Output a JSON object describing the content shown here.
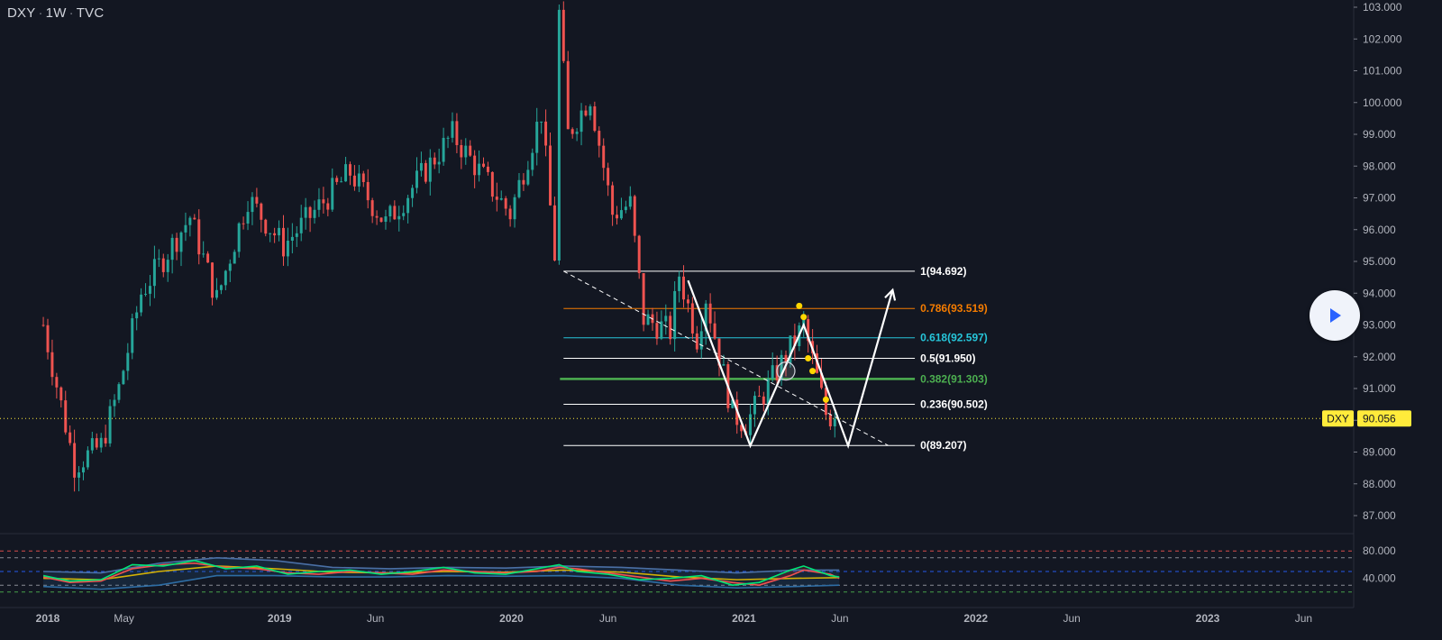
{
  "header": {
    "symbol": "DXY",
    "interval": "1W",
    "exchange": "TVC"
  },
  "colors": {
    "background": "#131722",
    "up": "#26a69a",
    "down": "#ef5350",
    "fib_line": "#ffffff",
    "fib_786": "#f57c00",
    "fib_618": "#26c6da",
    "fib_382": "#4caf50",
    "price_tag": "#ffeb3b",
    "marker": "#ffd600"
  },
  "icons": {
    "play": "play-icon"
  },
  "chart_data": [
    {
      "type": "candlestick",
      "title": "DXY · 1W · TVC",
      "ylim": [
        86.5,
        103.2
      ],
      "y_ticks": [
        "103.000",
        "102.000",
        "101.000",
        "100.000",
        "99.000",
        "98.000",
        "97.000",
        "96.000",
        "95.000",
        "94.000",
        "93.000",
        "92.000",
        "91.000",
        "90.000",
        "89.000",
        "88.000",
        "87.000"
      ],
      "x_ticks": [
        "2018",
        "May",
        "2019",
        "Jun",
        "2020",
        "Jun",
        "2021",
        "Jun",
        "2022",
        "Jun",
        "2023",
        "Jun"
      ],
      "last_price": {
        "symbol": "DXY",
        "value": "90.056"
      },
      "anchors": [
        {
          "date": "2017-12-25",
          "value": 93.0
        },
        {
          "date": "2018-02-12",
          "value": 88.6
        },
        {
          "date": "2018-03-26",
          "value": 89.2
        },
        {
          "date": "2018-04-23",
          "value": 91.0
        },
        {
          "date": "2018-05-28",
          "value": 94.0
        },
        {
          "date": "2018-08-13",
          "value": 96.4
        },
        {
          "date": "2018-09-24",
          "value": 93.8
        },
        {
          "date": "2018-11-12",
          "value": 97.0
        },
        {
          "date": "2019-01-07",
          "value": 95.5
        },
        {
          "date": "2019-04-22",
          "value": 97.8
        },
        {
          "date": "2019-06-17",
          "value": 96.2
        },
        {
          "date": "2019-09-30",
          "value": 99.0
        },
        {
          "date": "2019-12-30",
          "value": 96.5
        },
        {
          "date": "2020-02-17",
          "value": 99.7
        },
        {
          "date": "2020-03-09",
          "value": 95.2
        },
        {
          "date": "2020-03-16",
          "value": 102.8
        },
        {
          "date": "2020-03-30",
          "value": 99.0
        },
        {
          "date": "2020-05-04",
          "value": 100.2
        },
        {
          "date": "2020-06-08",
          "value": 96.5
        },
        {
          "date": "2020-07-06",
          "value": 96.8
        },
        {
          "date": "2020-07-27",
          "value": 93.2
        },
        {
          "date": "2020-09-07",
          "value": 92.8
        },
        {
          "date": "2020-09-21",
          "value": 94.6
        },
        {
          "date": "2020-10-19",
          "value": 92.6
        },
        {
          "date": "2020-11-02",
          "value": 93.9
        },
        {
          "date": "2020-12-14",
          "value": 90.2
        },
        {
          "date": "2021-01-04",
          "value": 89.9
        },
        {
          "date": "2021-01-25",
          "value": 90.6
        },
        {
          "date": "2021-03-22",
          "value": 92.5
        },
        {
          "date": "2021-04-05",
          "value": 93.0
        },
        {
          "date": "2021-05-10",
          "value": 90.2
        },
        {
          "date": "2021-05-24",
          "value": 90.05
        }
      ],
      "fibonacci": {
        "levels": [
          {
            "ratio": "1",
            "value": 94.692,
            "label": "1(94.692)"
          },
          {
            "ratio": "0.786",
            "value": 93.519,
            "label": "0.786(93.519)"
          },
          {
            "ratio": "0.618",
            "value": 92.597,
            "label": "0.618(92.597)"
          },
          {
            "ratio": "0.5",
            "value": 91.95,
            "label": "0.5(91.950)"
          },
          {
            "ratio": "0.382",
            "value": 91.303,
            "label": "0.382(91.303)"
          },
          {
            "ratio": "0.236",
            "value": 90.502,
            "label": "0.236(90.502)"
          },
          {
            "ratio": "0",
            "value": 89.207,
            "label": "0(89.207)"
          }
        ],
        "start_date": "2020-03-23",
        "end_date": "2021-09-27"
      },
      "w_pattern": [
        {
          "date": "2020-10-05",
          "value": 94.4
        },
        {
          "date": "2021-01-11",
          "value": 89.2
        },
        {
          "date": "2021-04-05",
          "value": 93.0
        },
        {
          "date": "2021-06-14",
          "value": 89.2
        },
        {
          "date": "2021-08-23",
          "value": 94.1
        }
      ],
      "trendline": [
        {
          "date": "2020-03-23",
          "value": 94.692
        },
        {
          "date": "2021-08-16",
          "value": 89.207
        }
      ],
      "markers": [
        {
          "date": "2021-03-29",
          "value": 93.6
        },
        {
          "date": "2021-04-05",
          "value": 93.25
        },
        {
          "date": "2021-04-12",
          "value": 91.95
        },
        {
          "date": "2021-04-19",
          "value": 91.55
        },
        {
          "date": "2021-05-10",
          "value": 90.65
        }
      ],
      "circle_marker": {
        "date": "2021-03-08",
        "value": 91.55
      }
    },
    {
      "type": "line",
      "title": "",
      "ylim": [
        0,
        100
      ],
      "y_ticks": [
        "80.000",
        "40.000"
      ],
      "levels": [
        80,
        70,
        50,
        30,
        20
      ],
      "series": [
        {
          "color": "#00e676",
          "values": [
            [
              "2017-12-25",
              44
            ],
            [
              "2018-02-05",
              36
            ],
            [
              "2018-03-26",
              38
            ],
            [
              "2018-05-14",
              60
            ],
            [
              "2018-07-02",
              58
            ],
            [
              "2018-08-20",
              66
            ],
            [
              "2018-10-08",
              54
            ],
            [
              "2018-11-26",
              58
            ],
            [
              "2019-01-14",
              46
            ],
            [
              "2019-03-04",
              50
            ],
            [
              "2019-04-22",
              52
            ],
            [
              "2019-06-10",
              46
            ],
            [
              "2019-07-29",
              50
            ],
            [
              "2019-09-16",
              56
            ],
            [
              "2019-11-04",
              48
            ],
            [
              "2019-12-23",
              46
            ],
            [
              "2020-02-10",
              54
            ],
            [
              "2020-03-16",
              60
            ],
            [
              "2020-04-13",
              50
            ],
            [
              "2020-06-01",
              46
            ],
            [
              "2020-07-20",
              38
            ],
            [
              "2020-09-07",
              40
            ],
            [
              "2020-10-26",
              44
            ],
            [
              "2020-12-14",
              30
            ],
            [
              "2021-01-25",
              34
            ],
            [
              "2021-03-15",
              52
            ],
            [
              "2021-04-05",
              58
            ],
            [
              "2021-05-17",
              44
            ],
            [
              "2021-05-31",
              42
            ]
          ]
        },
        {
          "color": "#ef5350",
          "values": [
            [
              "2017-12-25",
              42
            ],
            [
              "2018-02-05",
              34
            ],
            [
              "2018-03-26",
              36
            ],
            [
              "2018-05-14",
              54
            ],
            [
              "2018-07-02",
              60
            ],
            [
              "2018-08-20",
              62
            ],
            [
              "2018-10-08",
              56
            ],
            [
              "2018-11-26",
              54
            ],
            [
              "2019-01-14",
              48
            ],
            [
              "2019-03-04",
              46
            ],
            [
              "2019-04-22",
              50
            ],
            [
              "2019-06-10",
              48
            ],
            [
              "2019-07-29",
              46
            ],
            [
              "2019-09-16",
              52
            ],
            [
              "2019-11-04",
              50
            ],
            [
              "2019-12-23",
              48
            ],
            [
              "2020-02-10",
              50
            ],
            [
              "2020-03-16",
              56
            ],
            [
              "2020-04-13",
              54
            ],
            [
              "2020-06-01",
              48
            ],
            [
              "2020-07-20",
              42
            ],
            [
              "2020-09-07",
              36
            ],
            [
              "2020-10-26",
              40
            ],
            [
              "2020-12-14",
              34
            ],
            [
              "2021-01-25",
              30
            ],
            [
              "2021-03-15",
              44
            ],
            [
              "2021-04-05",
              52
            ],
            [
              "2021-05-17",
              46
            ],
            [
              "2021-05-31",
              40
            ]
          ]
        },
        {
          "color": "#d4b106",
          "values": [
            [
              "2017-12-25",
              40
            ],
            [
              "2018-03-26",
              38
            ],
            [
              "2018-06-25",
              50
            ],
            [
              "2018-09-24",
              58
            ],
            [
              "2018-12-24",
              54
            ],
            [
              "2019-03-25",
              49
            ],
            [
              "2019-06-24",
              48
            ],
            [
              "2019-09-23",
              50
            ],
            [
              "2019-12-23",
              49
            ],
            [
              "2020-03-23",
              52
            ],
            [
              "2020-06-22",
              49
            ],
            [
              "2020-09-21",
              42
            ],
            [
              "2020-12-21",
              38
            ],
            [
              "2021-03-22",
              40
            ],
            [
              "2021-05-31",
              41
            ]
          ]
        },
        {
          "color": "#4a6fa5",
          "values": [
            [
              "2017-12-25",
              50
            ],
            [
              "2018-03-26",
              48
            ],
            [
              "2018-06-25",
              62
            ],
            [
              "2018-09-24",
              70
            ],
            [
              "2018-12-24",
              66
            ],
            [
              "2019-03-25",
              56
            ],
            [
              "2019-06-24",
              54
            ],
            [
              "2019-09-23",
              56
            ],
            [
              "2019-12-23",
              55
            ],
            [
              "2020-03-23",
              58
            ],
            [
              "2020-06-22",
              56
            ],
            [
              "2020-09-21",
              52
            ],
            [
              "2020-12-21",
              48
            ],
            [
              "2021-03-22",
              52
            ],
            [
              "2021-05-31",
              52
            ]
          ]
        },
        {
          "color": "#2e6da4",
          "values": [
            [
              "2017-12-25",
              28
            ],
            [
              "2018-03-26",
              24
            ],
            [
              "2018-06-25",
              30
            ],
            [
              "2018-09-24",
              44
            ],
            [
              "2018-12-24",
              44
            ],
            [
              "2019-03-25",
              42
            ],
            [
              "2019-06-24",
              42
            ],
            [
              "2019-09-23",
              44
            ],
            [
              "2019-12-23",
              43
            ],
            [
              "2020-03-23",
              44
            ],
            [
              "2020-06-22",
              40
            ],
            [
              "2020-09-21",
              30
            ],
            [
              "2020-12-21",
              26
            ],
            [
              "2021-03-22",
              28
            ],
            [
              "2021-05-31",
              30
            ]
          ]
        }
      ]
    }
  ]
}
